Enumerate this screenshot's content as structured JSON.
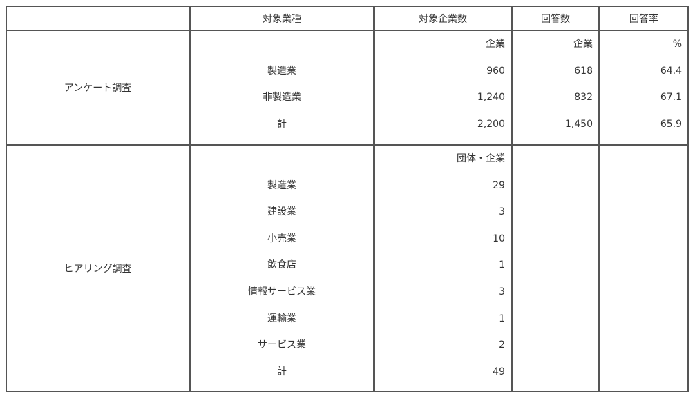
{
  "headers": [
    "",
    "対象業種",
    "対象企業数",
    "回答数",
    "回答率"
  ],
  "survey": {
    "label": "アンケート調査",
    "units": {
      "companies": "企業",
      "responses": "企業",
      "rate": "%"
    },
    "rows": [
      {
        "industry": "製造業",
        "companies": "960",
        "responses": "618",
        "rate": "64.4"
      },
      {
        "industry": "非製造業",
        "companies": "1,240",
        "responses": "832",
        "rate": "67.1"
      },
      {
        "industry": "計",
        "companies": "2,200",
        "responses": "1,450",
        "rate": "65.9"
      }
    ]
  },
  "hearing": {
    "label": "ヒアリング調査",
    "units": {
      "companies": "団体・企業"
    },
    "rows": [
      {
        "industry": "製造業",
        "companies": "29"
      },
      {
        "industry": "建設業",
        "companies": "3"
      },
      {
        "industry": "小売業",
        "companies": "10"
      },
      {
        "industry": "飲食店",
        "companies": "1"
      },
      {
        "industry": "情報サービス業",
        "companies": "3"
      },
      {
        "industry": "運輸業",
        "companies": "1"
      },
      {
        "industry": "サービス業",
        "companies": "2"
      },
      {
        "industry": "計",
        "companies": "49"
      }
    ]
  }
}
